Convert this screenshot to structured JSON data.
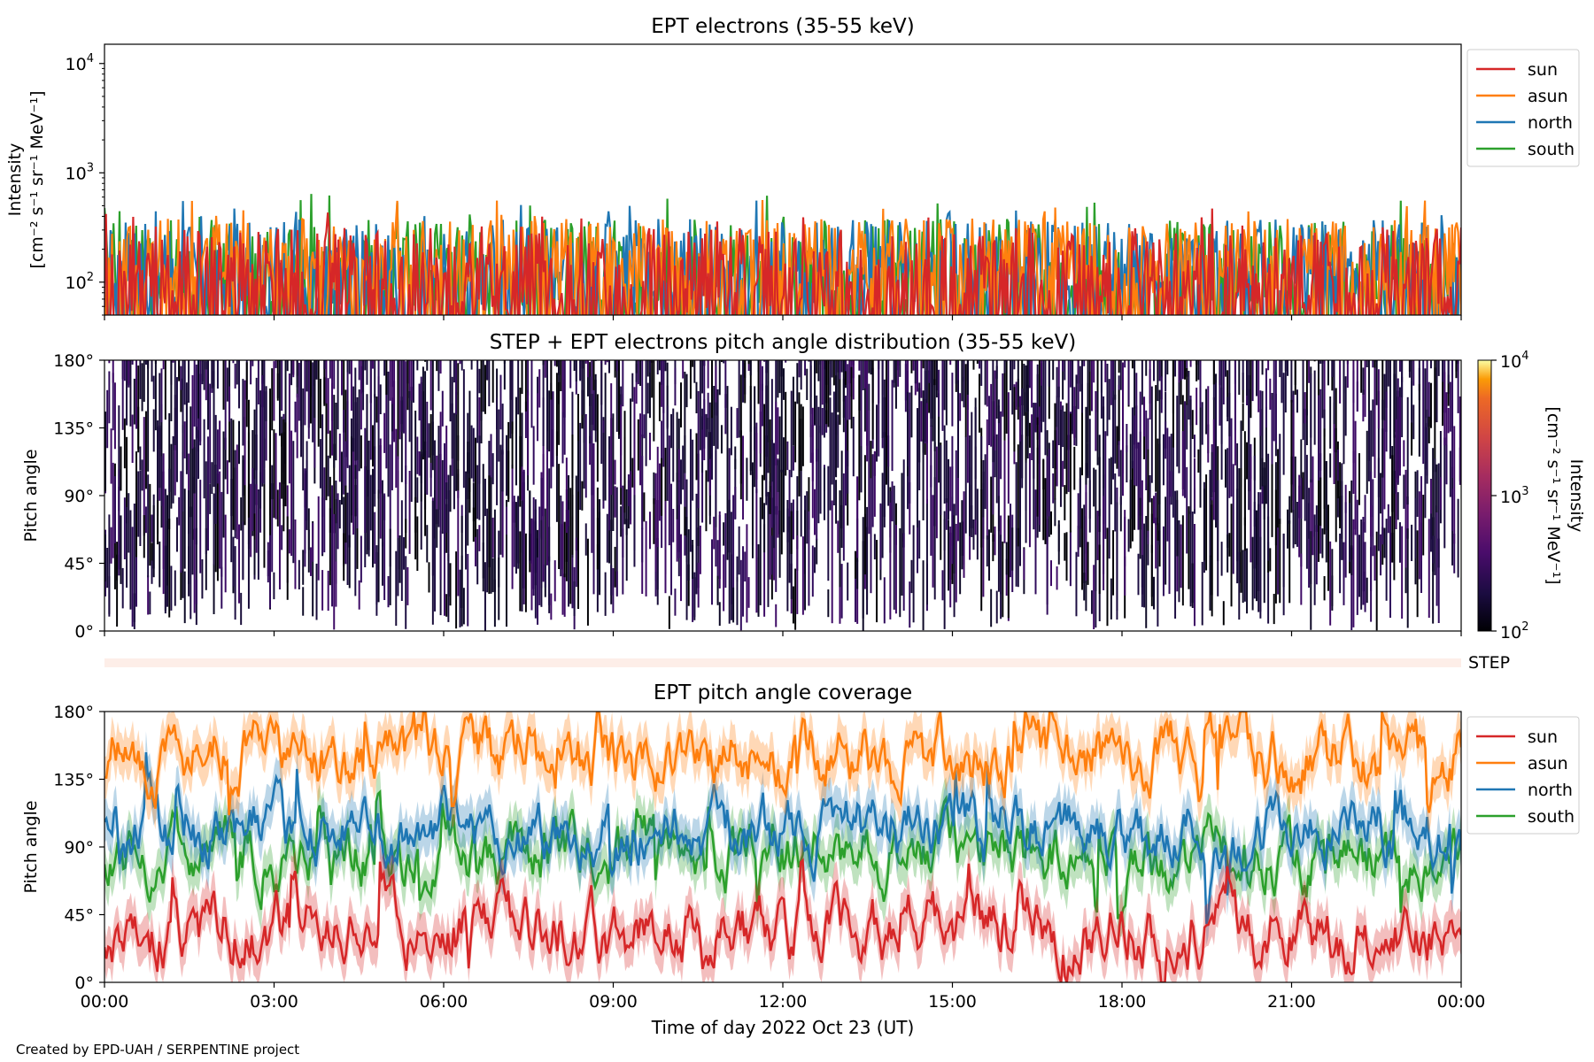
{
  "figure": {
    "xlabel": "Time of day 2022 Oct 23 (UT)",
    "credit": "Created by EPD-UAH / SERPENTINE project",
    "x_ticks": [
      "00:00",
      "03:00",
      "06:00",
      "09:00",
      "12:00",
      "15:00",
      "18:00",
      "21:00",
      "00:00"
    ]
  },
  "chart_data": [
    {
      "type": "line",
      "title": "EPT electrons (35-55 keV)",
      "ylabel_line1": "Intensity",
      "ylabel_line2": "[cm⁻² s⁻¹ sr⁻¹ MeV⁻¹]",
      "y_scale": "log",
      "ylim": [
        50,
        15000
      ],
      "y_ticks": [
        {
          "value": 100,
          "base": "10",
          "exp": "2"
        },
        {
          "value": 1000,
          "base": "10",
          "exp": "3"
        },
        {
          "value": 10000,
          "base": "10",
          "exp": "4"
        }
      ],
      "x_range_hours": [
        0,
        24
      ],
      "legend_position": "outside-right-top",
      "series": [
        {
          "name": "sun",
          "color": "#d62728",
          "baseline": 115,
          "spread": 0.45,
          "peak_max": 480
        },
        {
          "name": "asun",
          "color": "#ff7f0e",
          "baseline": 170,
          "spread": 0.35,
          "peak_max": 580
        },
        {
          "name": "north",
          "color": "#1f77b4",
          "baseline": 150,
          "spread": 0.4,
          "peak_max": 570
        },
        {
          "name": "south",
          "color": "#2ca02c",
          "baseline": 150,
          "spread": 0.4,
          "peak_max": 650
        }
      ]
    },
    {
      "type": "heatmap",
      "title": "STEP + EPT electrons pitch angle distribution (35-55 keV)",
      "ylabel": "Pitch angle",
      "ylim": [
        0,
        180
      ],
      "y_ticks": [
        "0°",
        "45°",
        "90°",
        "135°",
        "180°"
      ],
      "colorbar": {
        "label_line1": "Intensity",
        "label_line2": "[cm⁻² s⁻¹ sr⁻¹ MeV⁻¹]",
        "scale": "log",
        "range": [
          100,
          10000
        ],
        "ticks": [
          {
            "base": "10",
            "exp": "2"
          },
          {
            "base": "10",
            "exp": "3"
          },
          {
            "base": "10",
            "exp": "4"
          }
        ],
        "colormap": "inferno"
      },
      "step_label": "STEP"
    },
    {
      "type": "line",
      "title": "EPT pitch angle coverage",
      "ylabel": "Pitch angle",
      "ylim": [
        0,
        180
      ],
      "y_ticks": [
        "0°",
        "45°",
        "90°",
        "135°",
        "180°"
      ],
      "legend_position": "outside-right-top",
      "series": [
        {
          "name": "sun",
          "color": "#d62728",
          "mean_deg": 35,
          "band_deg": 14
        },
        {
          "name": "asun",
          "color": "#ff7f0e",
          "mean_deg": 150,
          "band_deg": 14
        },
        {
          "name": "north",
          "color": "#1f77b4",
          "mean_deg": 100,
          "band_deg": 14
        },
        {
          "name": "south",
          "color": "#2ca02c",
          "mean_deg": 85,
          "band_deg": 14
        }
      ]
    }
  ]
}
